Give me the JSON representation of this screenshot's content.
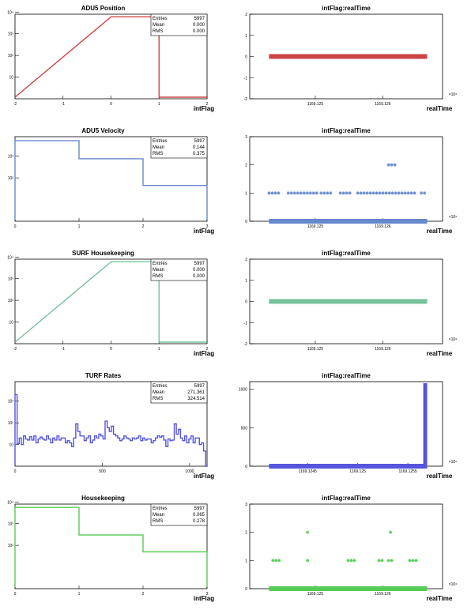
{
  "chart_data": [
    {
      "type": "histogram",
      "title": "ADU5 Position",
      "xlabel": "intFlag",
      "y_scale": "log",
      "xlim": [
        -2,
        2
      ],
      "x_ticks": [
        "-2",
        "-1",
        "0",
        "1",
        "2"
      ],
      "y_ticks": [
        "10",
        "10²",
        "10³",
        "10⁴"
      ],
      "color": "#cc4444",
      "bins": [
        {
          "x0": 0,
          "x1": 1,
          "count": 5997
        }
      ],
      "stats": {
        "entries_label": "Entries",
        "entries": "5997",
        "mean_label": "Mean",
        "mean": "0.000",
        "rms_label": "RMS",
        "rms": "0.000"
      }
    },
    {
      "type": "scatter",
      "title": "intFlag:realTime",
      "xlabel": "realTime",
      "exponent_label": "×10⁶",
      "ylim": [
        -2,
        2
      ],
      "y_ticks": [
        "-2",
        "-1",
        "0",
        "1",
        "2"
      ],
      "x_ticks": [
        "1169.125",
        "1169.126"
      ],
      "color": "#cc4444",
      "points": [
        {
          "x_from": 0.1,
          "x_to": 0.92,
          "y": 0,
          "dense": true
        }
      ]
    },
    {
      "type": "histogram",
      "title": "ADU5 Velocity",
      "xlabel": "intFlag",
      "y_scale": "log",
      "xlim": [
        0,
        3
      ],
      "x_ticks": [
        "0",
        "1",
        "2",
        "3"
      ],
      "y_ticks": [
        "10²",
        "10³"
      ],
      "color": "#6688cc",
      "bins": [
        {
          "x0": 0,
          "x1": 1,
          "count": 5200
        },
        {
          "x0": 1,
          "x1": 2,
          "count": 760
        },
        {
          "x0": 2,
          "x1": 3,
          "count": 45
        }
      ],
      "stats": {
        "entries_label": "Entries",
        "entries": "5997",
        "mean_label": "Mean",
        "mean": "0.144",
        "rms_label": "RMS",
        "rms": "0.375"
      }
    },
    {
      "type": "scatter",
      "title": "intFlag:realTime",
      "xlabel": "realTime",
      "exponent_label": "×10⁶",
      "ylim": [
        0,
        3
      ],
      "y_ticks": [
        "0",
        "1",
        "2",
        "3"
      ],
      "x_ticks": [
        "1169.125",
        "1169.126"
      ],
      "color": "#6688cc",
      "points": [
        {
          "x_from": 0.1,
          "x_to": 0.92,
          "y": 0,
          "dense": true
        },
        {
          "x_from": 0.1,
          "x_to": 0.16,
          "y": 1
        },
        {
          "x_from": 0.2,
          "x_to": 0.35,
          "y": 1
        },
        {
          "x_from": 0.37,
          "x_to": 0.43,
          "y": 1
        },
        {
          "x_from": 0.47,
          "x_to": 0.52,
          "y": 1
        },
        {
          "x_from": 0.56,
          "x_to": 0.86,
          "y": 1
        },
        {
          "x_from": 0.89,
          "x_to": 0.92,
          "y": 1
        },
        {
          "x_from": 0.72,
          "x_to": 0.76,
          "y": 2
        }
      ]
    },
    {
      "type": "histogram",
      "title": "SURF Housekeeping",
      "xlabel": "intFlag",
      "y_scale": "log",
      "xlim": [
        -2,
        2
      ],
      "x_ticks": [
        "-2",
        "-1",
        "0",
        "1",
        "2"
      ],
      "y_ticks": [
        "10",
        "10²",
        "10³",
        "10⁴"
      ],
      "color": "#77c29c",
      "bins": [
        {
          "x0": 0,
          "x1": 1,
          "count": 5997
        }
      ],
      "stats": {
        "entries_label": "Entries",
        "entries": "5997",
        "mean_label": "Mean",
        "mean": "0.000",
        "rms_label": "RMS",
        "rms": "0.000"
      }
    },
    {
      "type": "scatter",
      "title": "intFlag:realTime",
      "xlabel": "realTime",
      "exponent_label": "×10⁶",
      "ylim": [
        -2,
        2
      ],
      "y_ticks": [
        "-2",
        "-1",
        "0",
        "1",
        "2"
      ],
      "x_ticks": [
        "1169.125",
        "1169.126"
      ],
      "color": "#77c29c",
      "points": [
        {
          "x_from": 0.1,
          "x_to": 0.92,
          "y": 0,
          "dense": true
        }
      ]
    },
    {
      "type": "histogram",
      "title": "TURF Rates",
      "xlabel": "intFlag",
      "y_scale": "log",
      "xlim": [
        0,
        1100
      ],
      "x_ticks": [
        "0",
        "500",
        "1000"
      ],
      "y_ticks": [
        "10",
        "10²",
        "10³"
      ],
      "color": "#5555dd",
      "bins_uniform": {
        "start": 0,
        "width": 12,
        "counts": [
          2000,
          11,
          20,
          10,
          25,
          18,
          16,
          23,
          16,
          25,
          12,
          18,
          22,
          18,
          16,
          25,
          18,
          12,
          20,
          16,
          25,
          16,
          20,
          20,
          12,
          15,
          12,
          8,
          20,
          90,
          40,
          25,
          25,
          15,
          20,
          25,
          12,
          16,
          25,
          20,
          30,
          25,
          18,
          120,
          60,
          40,
          70,
          30,
          25,
          20,
          15,
          18,
          25,
          20,
          18,
          15,
          20,
          18,
          20,
          25,
          15,
          20,
          16,
          18,
          18,
          12,
          15,
          20,
          25,
          22,
          25,
          16,
          8,
          18,
          15,
          16,
          90,
          30,
          50,
          20,
          15,
          25,
          12,
          18,
          25,
          12,
          20,
          20,
          10,
          12,
          5,
          1
        ]
      },
      "stats": {
        "entries_label": "Entries",
        "entries": "5997",
        "mean_label": "Mean",
        "mean": "271.361",
        "rms_label": "RMS",
        "rms": "324.514"
      }
    },
    {
      "type": "scatter",
      "title": "intFlag:realTime",
      "xlabel": "realTime",
      "exponent_label": "×10⁶",
      "ylim": [
        0,
        1100
      ],
      "y_ticks": [
        "0",
        "500",
        "1000"
      ],
      "x_ticks": [
        "1169.1245",
        "1169.125",
        "1169.1255"
      ],
      "color": "#5555dd",
      "points": [
        {
          "x_from": 0.1,
          "x_to": 0.92,
          "y": 0,
          "dense": true
        },
        {
          "x_from": 0.9,
          "x_to": 0.92,
          "y_from": 0,
          "y_to": 1080,
          "vertical": true
        }
      ]
    },
    {
      "type": "histogram",
      "title": "Housekeeping",
      "xlabel": "intFlag",
      "y_scale": "log",
      "xlim": [
        0,
        3
      ],
      "x_ticks": [
        "0",
        "1",
        "2",
        "3"
      ],
      "y_ticks": [
        "10²",
        "10³",
        "10⁴"
      ],
      "color": "#55cc55",
      "bins": [
        {
          "x0": 0,
          "x1": 1,
          "count": 5600
        },
        {
          "x0": 1,
          "x1": 2,
          "count": 300
        },
        {
          "x0": 2,
          "x1": 3,
          "count": 50
        }
      ],
      "stats": {
        "entries_label": "Entries",
        "entries": "5997",
        "mean_label": "Mean",
        "mean": "0.065",
        "rms_label": "RMS",
        "rms": "0.278"
      }
    },
    {
      "type": "scatter",
      "title": "intFlag:realTime",
      "xlabel": "realTime",
      "exponent_label": "×10⁶",
      "ylim": [
        0,
        3
      ],
      "y_ticks": [
        "0",
        "1",
        "2",
        "3"
      ],
      "x_ticks": [
        "1169.125",
        "1169.126"
      ],
      "color": "#55cc55",
      "points": [
        {
          "x_from": 0.1,
          "x_to": 0.92,
          "y": 0,
          "dense": true
        },
        {
          "x_from": 0.12,
          "x_to": 0.16,
          "y": 1
        },
        {
          "x_from": 0.3,
          "x_to": 0.31,
          "y": 1
        },
        {
          "x_from": 0.51,
          "x_to": 0.55,
          "y": 1
        },
        {
          "x_from": 0.67,
          "x_to": 0.7,
          "y": 1
        },
        {
          "x_from": 0.72,
          "x_to": 0.75,
          "y": 1
        },
        {
          "x_from": 0.83,
          "x_to": 0.87,
          "y": 1
        },
        {
          "x_from": 0.3,
          "x_to": 0.3,
          "y": 2
        },
        {
          "x_from": 0.73,
          "x_to": 0.73,
          "y": 2
        }
      ]
    }
  ]
}
